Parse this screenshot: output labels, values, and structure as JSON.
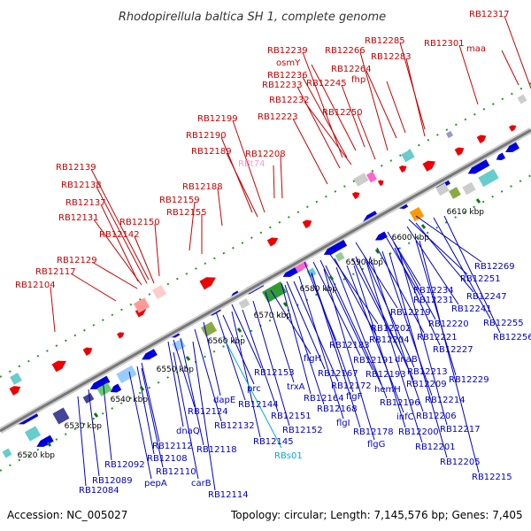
{
  "title": "Rhodopirellula baltica SH 1, complete genome",
  "footer": {
    "accession": "Accession: NC_005027",
    "summary": "Topology: circular; Length: 7,145,576 bp; Genes: 7,405"
  },
  "colors": {
    "forward_gene": "#ee0000",
    "reverse_gene": "#0000dd",
    "forward_label": "#cc0000",
    "reverse_label": "#0000cc",
    "rna_label": "#00aadd",
    "pseudo_label": "#ff99cc",
    "backbone": "#999999",
    "tick": "#117711"
  },
  "ticks": [
    {
      "label": "6520 kbp"
    },
    {
      "label": "6530 kbp"
    },
    {
      "label": "6540 kbp"
    },
    {
      "label": "6550 kbp"
    },
    {
      "label": "6560 kbp"
    },
    {
      "label": "6570 kbp"
    },
    {
      "label": "6580 kbp"
    },
    {
      "label": "6590 kbp"
    },
    {
      "label": "6600 kbp"
    },
    {
      "label": "6610 kbp"
    }
  ],
  "forward_labels": [
    "RB12317",
    "RB12239",
    "RB12266",
    "RB12285",
    "RB12301",
    "osmY",
    "maa",
    "RB12236",
    "RB12264",
    "RB12233",
    "RB12245",
    "fhp",
    "RB12283",
    "RB12232",
    "RB12250",
    "RB12199",
    "RB12223",
    "RB12190",
    "RB12189",
    "RB12208",
    "RBt74",
    "RB12139",
    "RB12188",
    "RB12138",
    "RB12159",
    "RB12137",
    "RB12155",
    "RB12131",
    "RB12150",
    "RB12142",
    "RB12129",
    "RB12117",
    "RB12104"
  ],
  "reverse_labels": [
    "RB12269",
    "RB12251",
    "RB12234",
    "RB12247",
    "RB12231",
    "RB12241",
    "RB12219",
    "RB12255",
    "RB12202",
    "RB12220",
    "RB12256",
    "RB12183",
    "RB12204",
    "RB12221",
    "flgH",
    "RB12227",
    "RB12167",
    "RB12191",
    "dnaB",
    "RB12153",
    "RB12172",
    "RB12193",
    "RB12213",
    "RB12229",
    "trxA",
    "flgF",
    "hemH",
    "RB12209",
    "prc",
    "RB12164",
    "RB12196",
    "RB12214",
    "dapE",
    "RB12144",
    "RB12168",
    "infC",
    "RB12206",
    "RB12124",
    "RB12151",
    "flgI",
    "RB12217",
    "RB12132",
    "RB12152",
    "RB12178",
    "RB12200",
    "dnaQ",
    "RB12145",
    "flgG",
    "RB12201",
    "RB12112",
    "RB12118",
    "RB12205",
    "RB12108",
    "RB12092",
    "RB12110",
    "RB12215",
    "RB12089",
    "pepA",
    "carB",
    "RB12084",
    "RB12114"
  ],
  "rna_labels": [
    "RBs01"
  ]
}
